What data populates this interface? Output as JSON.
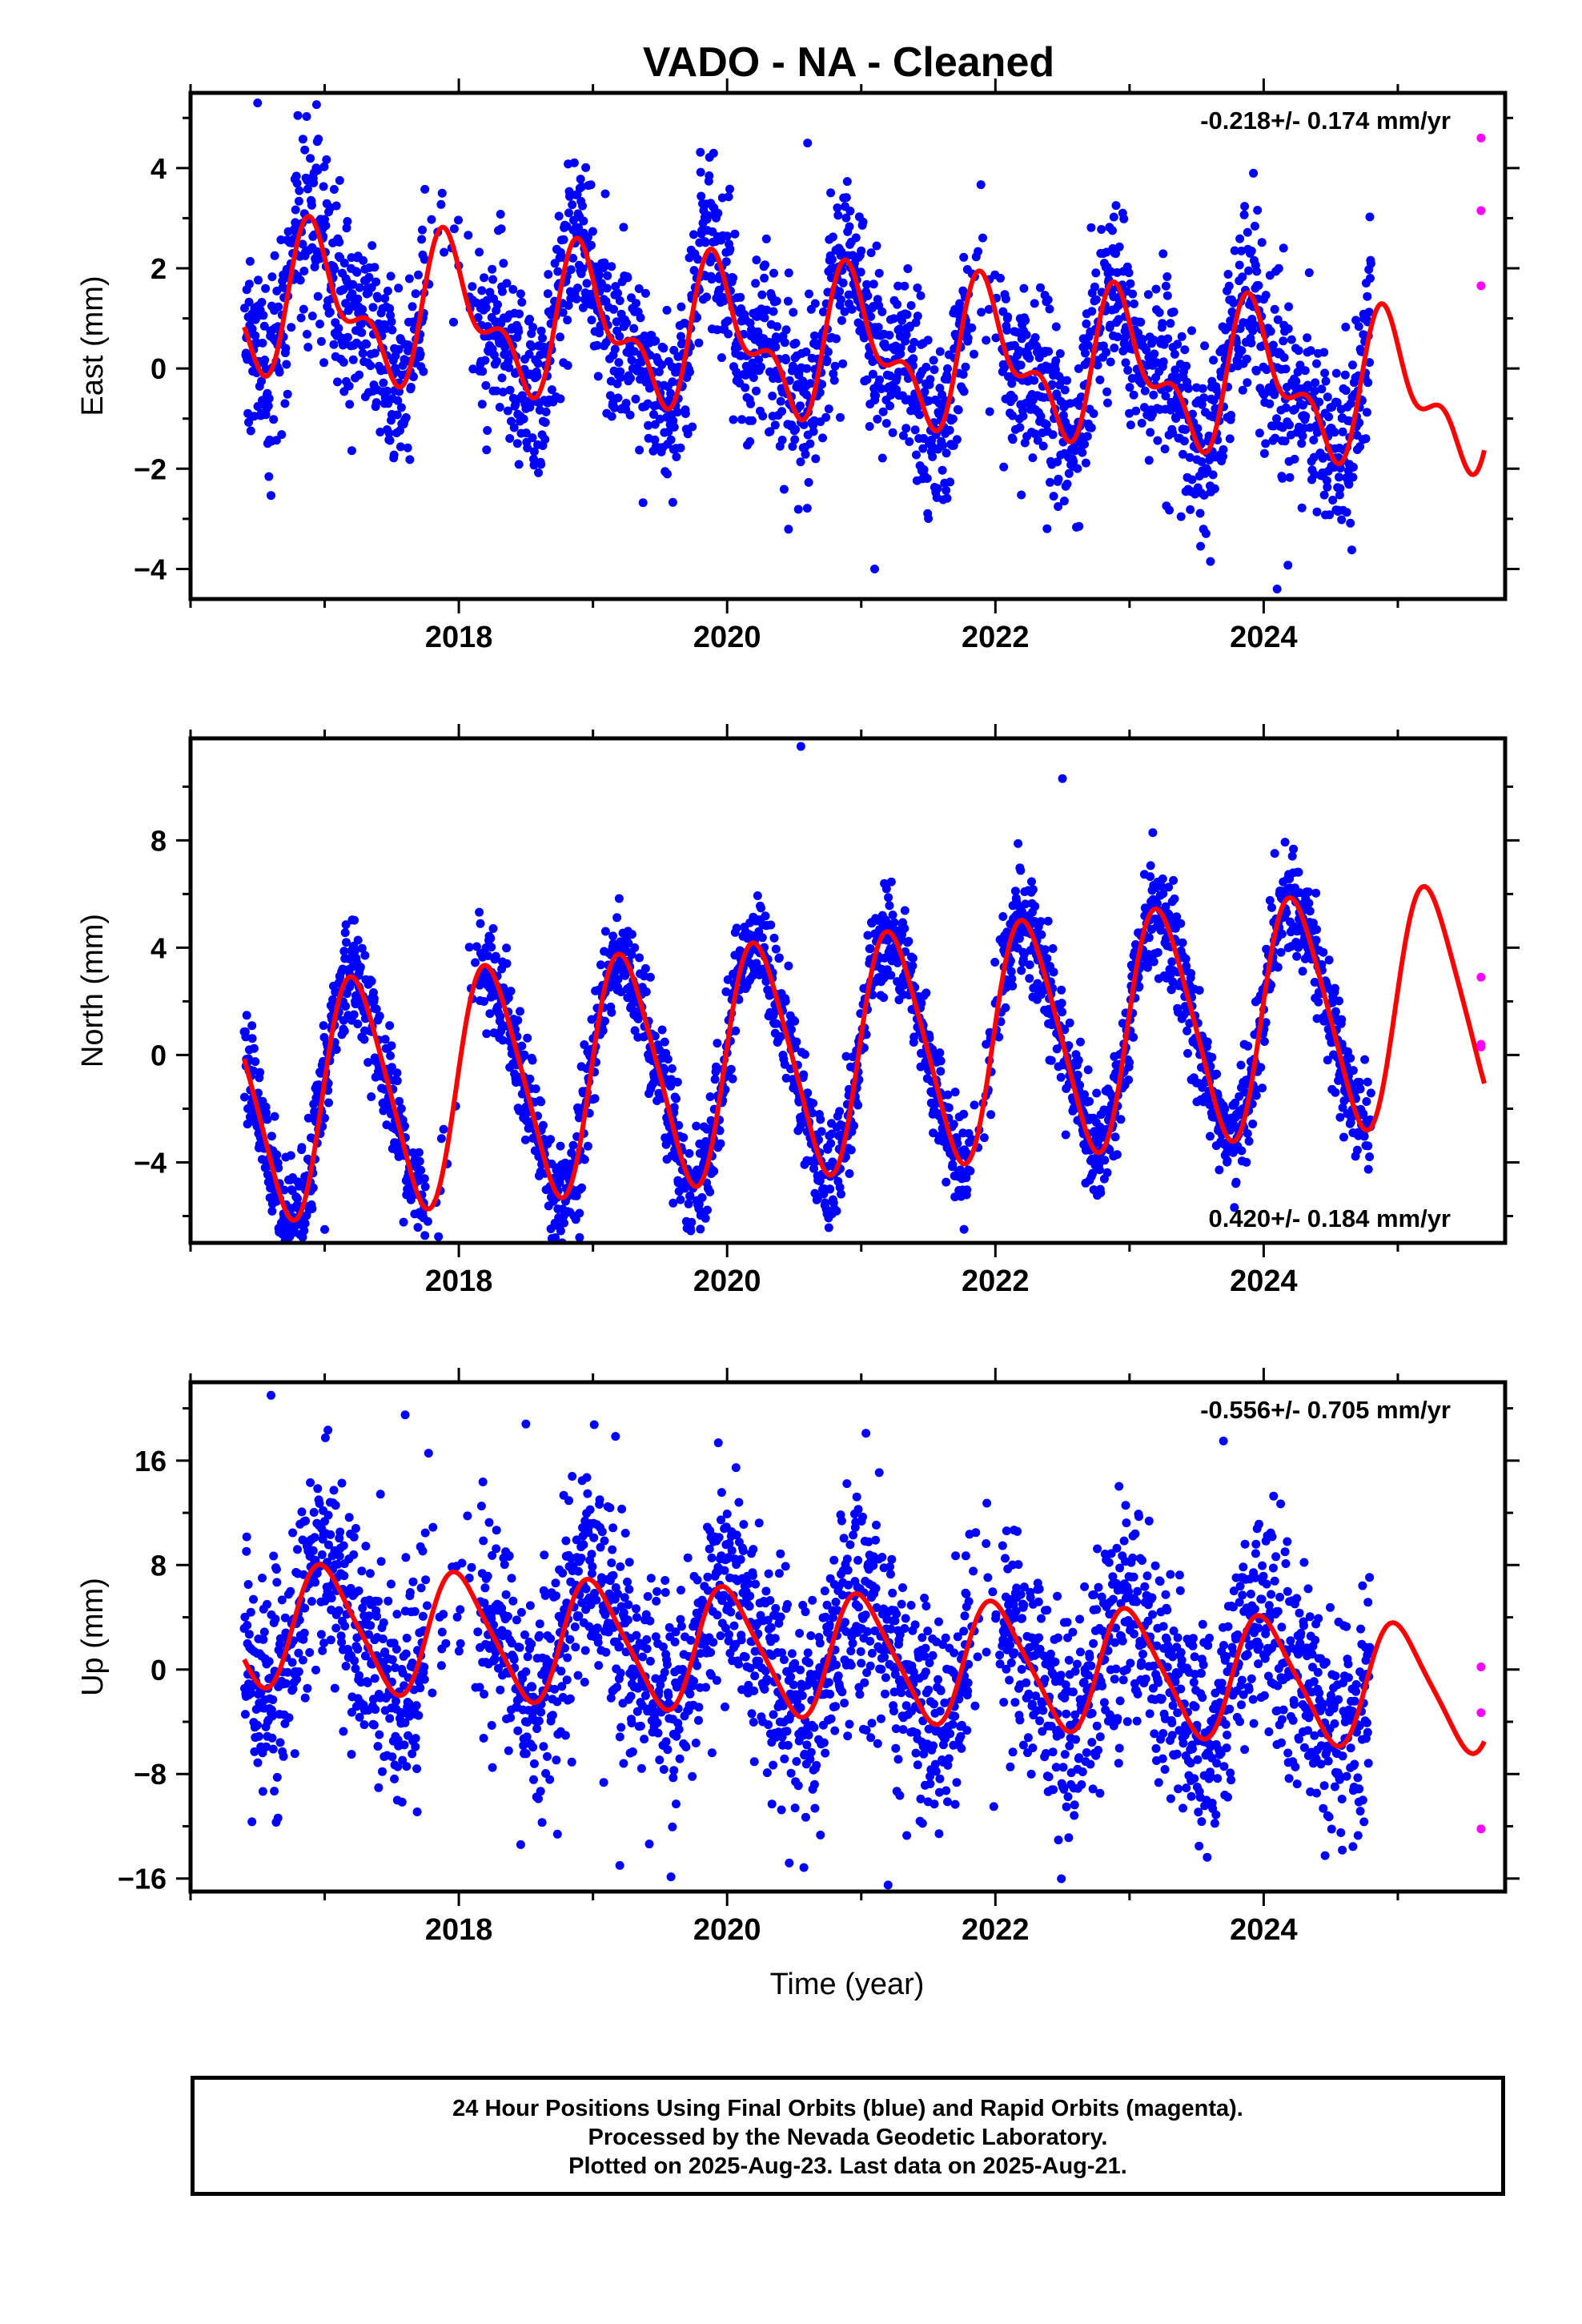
{
  "title": "VADO  - NA - Cleaned",
  "xlabel": "Time (year)",
  "footer": {
    "line1": "24 Hour Positions Using Final Orbits (blue) and Rapid Orbits (magenta).",
    "line2": "Processed by the Nevada Geodetic Laboratory.",
    "line3": "Plotted on 2025-Aug-23. Last data on 2025-Aug-21."
  },
  "colors": {
    "final": "#0000ff",
    "rapid": "#ff00ff",
    "model": "#ff0000"
  },
  "chart_data": [
    {
      "type": "scatter",
      "ylabel": "East (mm)",
      "rate": "-0.218+/- 0.174 mm/yr",
      "rate_position": "top-right",
      "xlim": [
        2016.0,
        2025.8
      ],
      "ylim": [
        -4.6,
        5.5
      ],
      "xticks": [
        2018,
        2020,
        2022,
        2024
      ],
      "yticks": [
        -4,
        -2,
        0,
        2,
        4
      ],
      "model": {
        "slope": -0.218,
        "offset": 0.6,
        "annual_amp": 1.2,
        "annual_phase": 1.9,
        "semi_amp": 0.7,
        "semi_phase": 3.4,
        "x_start": 2016.4,
        "x_end": 2025.65
      },
      "final_orbits": {
        "x_range": [
          2016.4,
          2024.8
        ],
        "noise_sd": 0.9,
        "outliers": [
          [
            2016.5,
            5.3
          ],
          [
            2020.6,
            4.5
          ],
          [
            2021.1,
            -4.0
          ],
          [
            2024.1,
            -4.4
          ]
        ]
      },
      "rapid_orbits": [
        [
          2025.62,
          4.6
        ],
        [
          2025.62,
          3.15
        ],
        [
          2025.62,
          1.65
        ]
      ]
    },
    {
      "type": "scatter",
      "ylabel": "North (mm)",
      "rate": "0.420+/- 0.184 mm/yr",
      "rate_position": "bottom-right",
      "xlim": [
        2016.0,
        2025.8
      ],
      "ylim": [
        -7.0,
        11.8
      ],
      "xticks": [
        2018,
        2020,
        2022,
        2024
      ],
      "yticks": [
        -4,
        0,
        4,
        8
      ],
      "model": {
        "slope": 0.42,
        "offset": -0.3,
        "annual_amp": 4.3,
        "annual_phase": 0.1,
        "semi_amp": 0.6,
        "semi_phase": 0.3,
        "x_start": 2016.4,
        "x_end": 2025.65
      },
      "final_orbits": {
        "x_range": [
          2016.4,
          2024.8
        ],
        "noise_sd": 1.0,
        "outliers": [
          [
            2020.55,
            11.5
          ],
          [
            2022.5,
            10.3
          ],
          [
            2018.9,
            -6.8
          ],
          [
            2017.0,
            -6.5
          ]
        ]
      },
      "rapid_orbits": [
        [
          2025.62,
          2.9
        ],
        [
          2025.62,
          0.4
        ],
        [
          2025.62,
          0.3
        ]
      ]
    },
    {
      "type": "scatter",
      "ylabel": "Up (mm)",
      "rate": "-0.556+/- 0.705 mm/yr",
      "rate_position": "top-right",
      "xlim": [
        2016.0,
        2025.8
      ],
      "ylim": [
        -17.0,
        22.0
      ],
      "xticks": [
        2018,
        2020,
        2022,
        2024
      ],
      "yticks": [
        -16,
        -8,
        0,
        8,
        16
      ],
      "model": {
        "slope": -0.556,
        "offset": 1.5,
        "annual_amp": 4.6,
        "annual_phase": 1.5,
        "semi_amp": 0.8,
        "semi_phase": 3.0,
        "x_start": 2016.4,
        "x_end": 2025.65
      },
      "final_orbits": {
        "x_range": [
          2016.4,
          2024.8
        ],
        "noise_sd": 4.2,
        "outliers": [
          [
            2016.6,
            21.0
          ],
          [
            2017.6,
            19.5
          ],
          [
            2018.5,
            18.8
          ],
          [
            2023.7,
            17.5
          ],
          [
            2021.2,
            -16.5
          ],
          [
            2019.2,
            -15.0
          ]
        ]
      },
      "rapid_orbits": [
        [
          2025.62,
          0.2
        ],
        [
          2025.62,
          -3.3
        ],
        [
          2025.62,
          -12.2
        ]
      ]
    }
  ]
}
